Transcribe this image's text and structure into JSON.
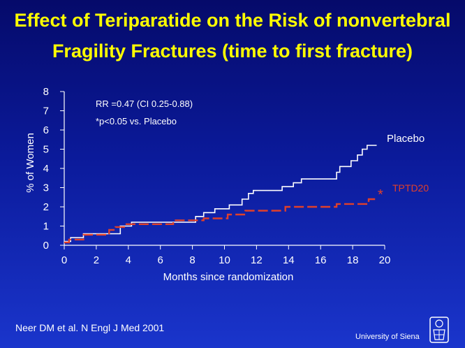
{
  "title_line1": "Effect of Teriparatide on the Risk of nonvertebral",
  "title_line2": "Fragility Fractures (time to first fracture)",
  "footnote": "Neer DM et al. N Engl J Med 2001",
  "affiliation": "University of Siena",
  "colors": {
    "background_top": "#050a6a",
    "background_bottom": "#1a35cc",
    "title": "#ffff00",
    "placebo": "#ffffff",
    "tptd20": "#e0402a"
  },
  "chart_data": {
    "type": "line",
    "xlabel": "Months since randomization",
    "ylabel": "% of Women",
    "xlim": [
      0,
      20
    ],
    "ylim": [
      0,
      8
    ],
    "x_ticks": [
      "0",
      "2",
      "4",
      "6",
      "8",
      "10",
      "12",
      "14",
      "16",
      "18",
      "20"
    ],
    "y_ticks": [
      "0",
      "1",
      "2",
      "3",
      "4",
      "5",
      "6",
      "7",
      "8"
    ],
    "annotations": [
      "RR =0.47 (CI 0.25-0.88)",
      "*p<0.05 vs. Placebo"
    ],
    "significance_marker": "*",
    "series": [
      {
        "name": "Placebo",
        "style": "solid",
        "color": "#ffffff",
        "points": [
          [
            0,
            0.2
          ],
          [
            0.4,
            0.2
          ],
          [
            0.4,
            0.4
          ],
          [
            1.2,
            0.4
          ],
          [
            1.2,
            0.6
          ],
          [
            3.5,
            0.6
          ],
          [
            3.5,
            1.0
          ],
          [
            4.2,
            1.0
          ],
          [
            4.2,
            1.2
          ],
          [
            8.2,
            1.2
          ],
          [
            8.2,
            1.5
          ],
          [
            8.7,
            1.5
          ],
          [
            8.7,
            1.7
          ],
          [
            9.4,
            1.7
          ],
          [
            9.4,
            1.9
          ],
          [
            10.3,
            1.9
          ],
          [
            10.3,
            2.1
          ],
          [
            11.1,
            2.1
          ],
          [
            11.1,
            2.4
          ],
          [
            11.5,
            2.4
          ],
          [
            11.5,
            2.7
          ],
          [
            11.8,
            2.7
          ],
          [
            11.8,
            2.85
          ],
          [
            13.6,
            2.85
          ],
          [
            13.6,
            3.05
          ],
          [
            14.3,
            3.05
          ],
          [
            14.3,
            3.25
          ],
          [
            14.8,
            3.25
          ],
          [
            14.8,
            3.45
          ],
          [
            17.0,
            3.45
          ],
          [
            17.0,
            3.8
          ],
          [
            17.2,
            3.8
          ],
          [
            17.2,
            4.1
          ],
          [
            17.9,
            4.1
          ],
          [
            17.9,
            4.4
          ],
          [
            18.3,
            4.4
          ],
          [
            18.3,
            4.7
          ],
          [
            18.6,
            4.7
          ],
          [
            18.6,
            5.0
          ],
          [
            18.9,
            5.0
          ],
          [
            18.9,
            5.2
          ],
          [
            19.5,
            5.2
          ]
        ]
      },
      {
        "name": "TPTD20",
        "style": "dashed",
        "color": "#e0402a",
        "points": [
          [
            0,
            0.15
          ],
          [
            0.3,
            0.15
          ],
          [
            0.3,
            0.3
          ],
          [
            1.2,
            0.3
          ],
          [
            1.2,
            0.55
          ],
          [
            2.8,
            0.55
          ],
          [
            2.8,
            0.8
          ],
          [
            3.2,
            0.8
          ],
          [
            3.2,
            0.95
          ],
          [
            3.8,
            0.95
          ],
          [
            3.8,
            1.1
          ],
          [
            6.8,
            1.1
          ],
          [
            6.8,
            1.3
          ],
          [
            8.7,
            1.3
          ],
          [
            8.7,
            1.4
          ],
          [
            10.2,
            1.4
          ],
          [
            10.2,
            1.6
          ],
          [
            11.3,
            1.6
          ],
          [
            11.3,
            1.8
          ],
          [
            13.8,
            1.8
          ],
          [
            13.8,
            2.0
          ],
          [
            17.0,
            2.0
          ],
          [
            17.0,
            2.15
          ],
          [
            19.0,
            2.15
          ],
          [
            19.0,
            2.4
          ],
          [
            19.4,
            2.4
          ]
        ]
      }
    ]
  }
}
